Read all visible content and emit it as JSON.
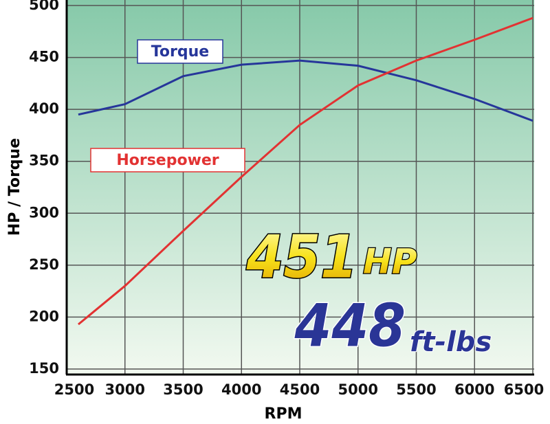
{
  "chart_data": {
    "type": "line",
    "x_label": "RPM",
    "y_label": "HP / Torque",
    "x": [
      2600,
      3000,
      3500,
      4000,
      4500,
      5000,
      5500,
      6000,
      6500
    ],
    "series": [
      {
        "name": "Torque",
        "color": "#26369a",
        "values": [
          395,
          405,
          432,
          443,
          447,
          442,
          428,
          410,
          389
        ]
      },
      {
        "name": "Horsepower",
        "color": "#e23232",
        "values": [
          193,
          230,
          283,
          335,
          385,
          423,
          447,
          467,
          488
        ]
      }
    ],
    "annotations": [
      "451",
      "HP",
      "448",
      "ft-lbs"
    ],
    "xlim": [
      2500,
      6500
    ],
    "xticks": [
      2500,
      3000,
      3500,
      4000,
      4500,
      5000,
      5500,
      6000,
      6500
    ],
    "ylim": [
      150,
      500
    ],
    "yticks": [
      150,
      200,
      250,
      300,
      350,
      400,
      450,
      500
    ],
    "grid": true
  }
}
